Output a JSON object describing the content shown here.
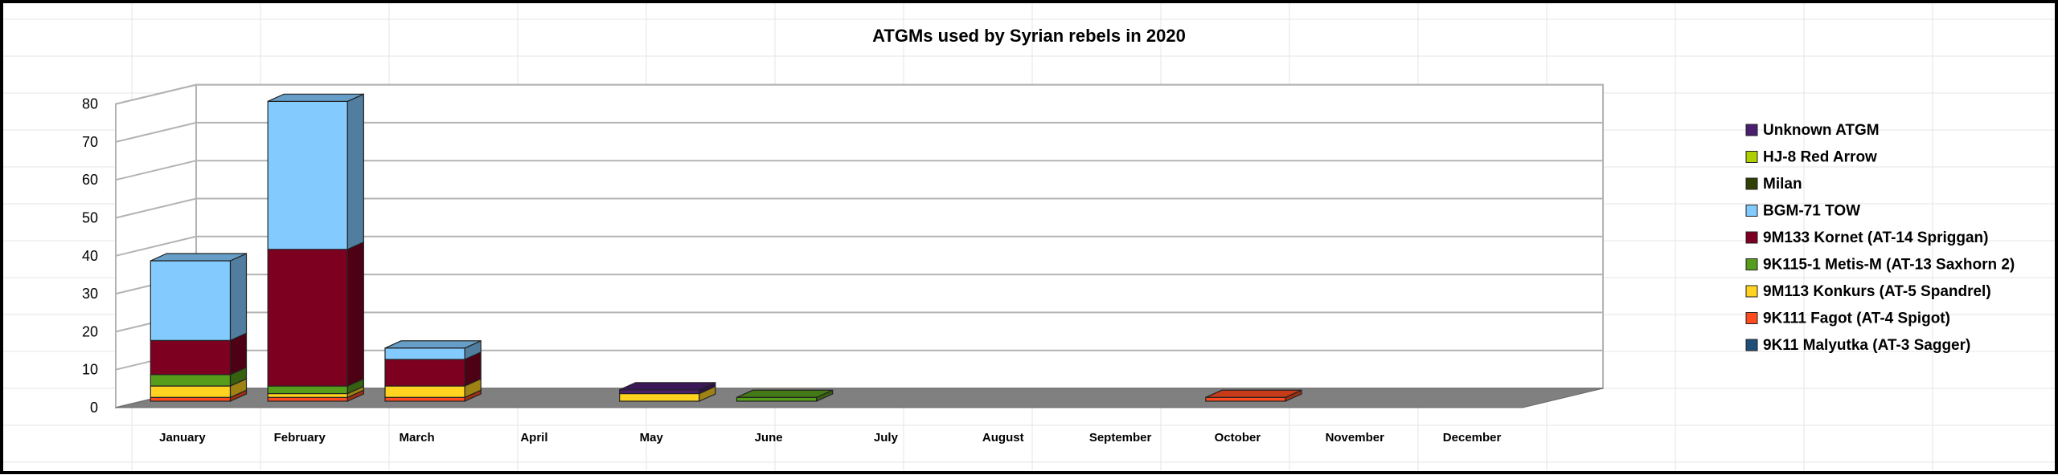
{
  "chart_data": {
    "type": "bar",
    "stacked": true,
    "three_d": true,
    "title": "ATGMs used by Syrian rebels in 2020",
    "xlabel": "",
    "ylabel": "",
    "ylim": [
      0,
      80
    ],
    "yticks": [
      0,
      10,
      20,
      30,
      40,
      50,
      60,
      70,
      80
    ],
    "grid": true,
    "legend_position": "right",
    "categories": [
      "January",
      "February",
      "March",
      "April",
      "May",
      "June",
      "July",
      "August",
      "September",
      "October",
      "November",
      "December"
    ],
    "series": [
      {
        "name": "9K11 Malyutka (AT-3 Sagger)",
        "color": "#1f4e79",
        "values": [
          0,
          0,
          0,
          0,
          0,
          0,
          0,
          0,
          0,
          0,
          0,
          0
        ]
      },
      {
        "name": "9K111 Fagot (AT-4 Spigot)",
        "color": "#ff4b1f",
        "values": [
          1,
          1,
          1,
          0,
          0,
          0,
          0,
          0,
          0,
          1,
          0,
          0
        ]
      },
      {
        "name": "9M113 Konkurs (AT-5 Spandrel)",
        "color": "#ffd320",
        "values": [
          3,
          1,
          3,
          0,
          2,
          0,
          0,
          0,
          0,
          0,
          0,
          0
        ]
      },
      {
        "name": "9K115-1 Metis-M (AT-13 Saxhorn 2)",
        "color": "#579d1c",
        "values": [
          3,
          2,
          0,
          0,
          0,
          1,
          0,
          0,
          0,
          0,
          0,
          0
        ]
      },
      {
        "name": "9M133 Kornet (AT-14 Spriggan)",
        "color": "#7e0021",
        "values": [
          9,
          36,
          7,
          0,
          0,
          0,
          0,
          0,
          0,
          0,
          0,
          0
        ]
      },
      {
        "name": "BGM-71 TOW",
        "color": "#83caff",
        "values": [
          21,
          39,
          3,
          0,
          0,
          0,
          0,
          0,
          0,
          0,
          0,
          0
        ]
      },
      {
        "name": "Milan",
        "color": "#314004",
        "values": [
          0,
          0,
          0,
          0,
          0,
          0,
          0,
          0,
          0,
          0,
          0,
          0
        ]
      },
      {
        "name": "HJ-8 Red Arrow",
        "color": "#aecf00",
        "values": [
          0,
          0,
          0,
          0,
          0,
          0,
          0,
          0,
          0,
          0,
          0,
          0
        ]
      },
      {
        "name": "Unknown ATGM",
        "color": "#4b1f6f",
        "values": [
          0,
          0,
          0,
          0,
          1,
          0,
          0,
          0,
          0,
          0,
          0,
          0
        ]
      }
    ]
  }
}
